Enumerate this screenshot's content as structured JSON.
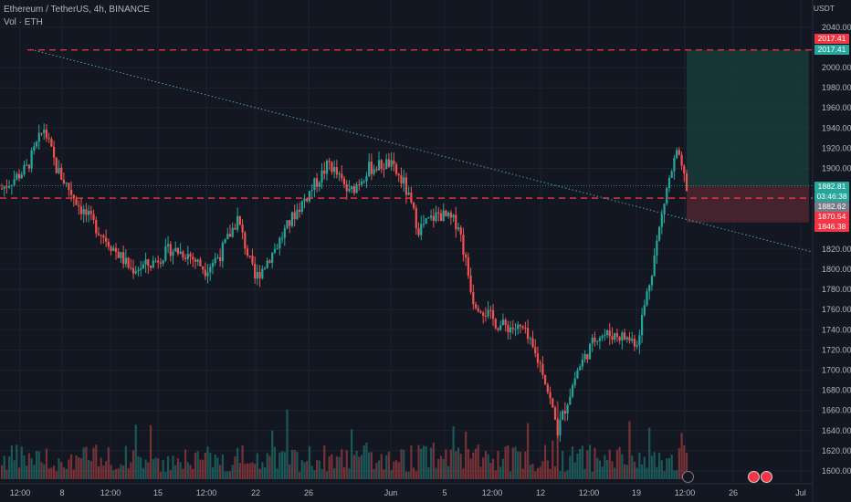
{
  "legend": {
    "symbol": "Ethereum / TetherUS, 4h, BINANCE",
    "volume": "Vol · ETH"
  },
  "currency": "USDT",
  "colors": {
    "background": "#131722",
    "up": "#26a69a",
    "down": "#ef5350",
    "grid": "#1e222d",
    "trend": "#4fa3a0",
    "target_zone": "#1a3b3a",
    "stop_zone": "#4a2430",
    "dashed_line": "#f23645"
  },
  "price_tags": {
    "t1": "2017.41",
    "t2": "2017.41",
    "current": "1882.81",
    "countdown": "03:46:38",
    "t4": "1882.62",
    "t5": "1870.54",
    "t6": "1846.38"
  },
  "chart_data": {
    "type": "candlestick",
    "title": "Ethereum / TetherUS, 4h, BINANCE",
    "x_ticks": [
      "12:00",
      "8",
      "12:00",
      "15",
      "12:00",
      "22",
      "26",
      "Jun",
      "5",
      "12:00",
      "12",
      "12:00",
      "19",
      "12:00",
      "26",
      "Jul"
    ],
    "y_ticks": [
      2040,
      2000,
      1980,
      1960,
      1940,
      1920,
      1900,
      1820,
      1800,
      1780,
      1760,
      1740,
      1720,
      1700,
      1680,
      1660,
      1640,
      1620,
      1600
    ],
    "ylim": [
      1593,
      2052
    ],
    "series_close_anchors": [
      [
        0,
        1880
      ],
      [
        10,
        1900
      ],
      [
        17,
        1940
      ],
      [
        22,
        1900
      ],
      [
        32,
        1860
      ],
      [
        42,
        1830
      ],
      [
        52,
        1800
      ],
      [
        60,
        1805
      ],
      [
        68,
        1820
      ],
      [
        75,
        1815
      ],
      [
        82,
        1800
      ],
      [
        88,
        1815
      ],
      [
        95,
        1850
      ],
      [
        102,
        1790
      ],
      [
        110,
        1820
      ],
      [
        118,
        1855
      ],
      [
        125,
        1880
      ],
      [
        132,
        1905
      ],
      [
        140,
        1875
      ],
      [
        148,
        1900
      ],
      [
        156,
        1905
      ],
      [
        162,
        1885
      ],
      [
        168,
        1840
      ],
      [
        176,
        1855
      ],
      [
        184,
        1845
      ],
      [
        190,
        1770
      ],
      [
        200,
        1745
      ],
      [
        210,
        1740
      ],
      [
        218,
        1700
      ],
      [
        224,
        1640
      ],
      [
        232,
        1700
      ],
      [
        240,
        1735
      ],
      [
        248,
        1735
      ],
      [
        256,
        1728
      ],
      [
        262,
        1800
      ],
      [
        268,
        1880
      ],
      [
        272,
        1915
      ],
      [
        276,
        1882
      ]
    ],
    "horizontal_levels": [
      2017.41,
      1882.81,
      1870.54,
      1846.38
    ],
    "trendline": {
      "from": [
        "start",
        2017
      ],
      "to": [
        "end",
        1820
      ]
    },
    "position": {
      "entry": 1882.81,
      "target": 2017.41,
      "stop": 1846.38
    }
  }
}
